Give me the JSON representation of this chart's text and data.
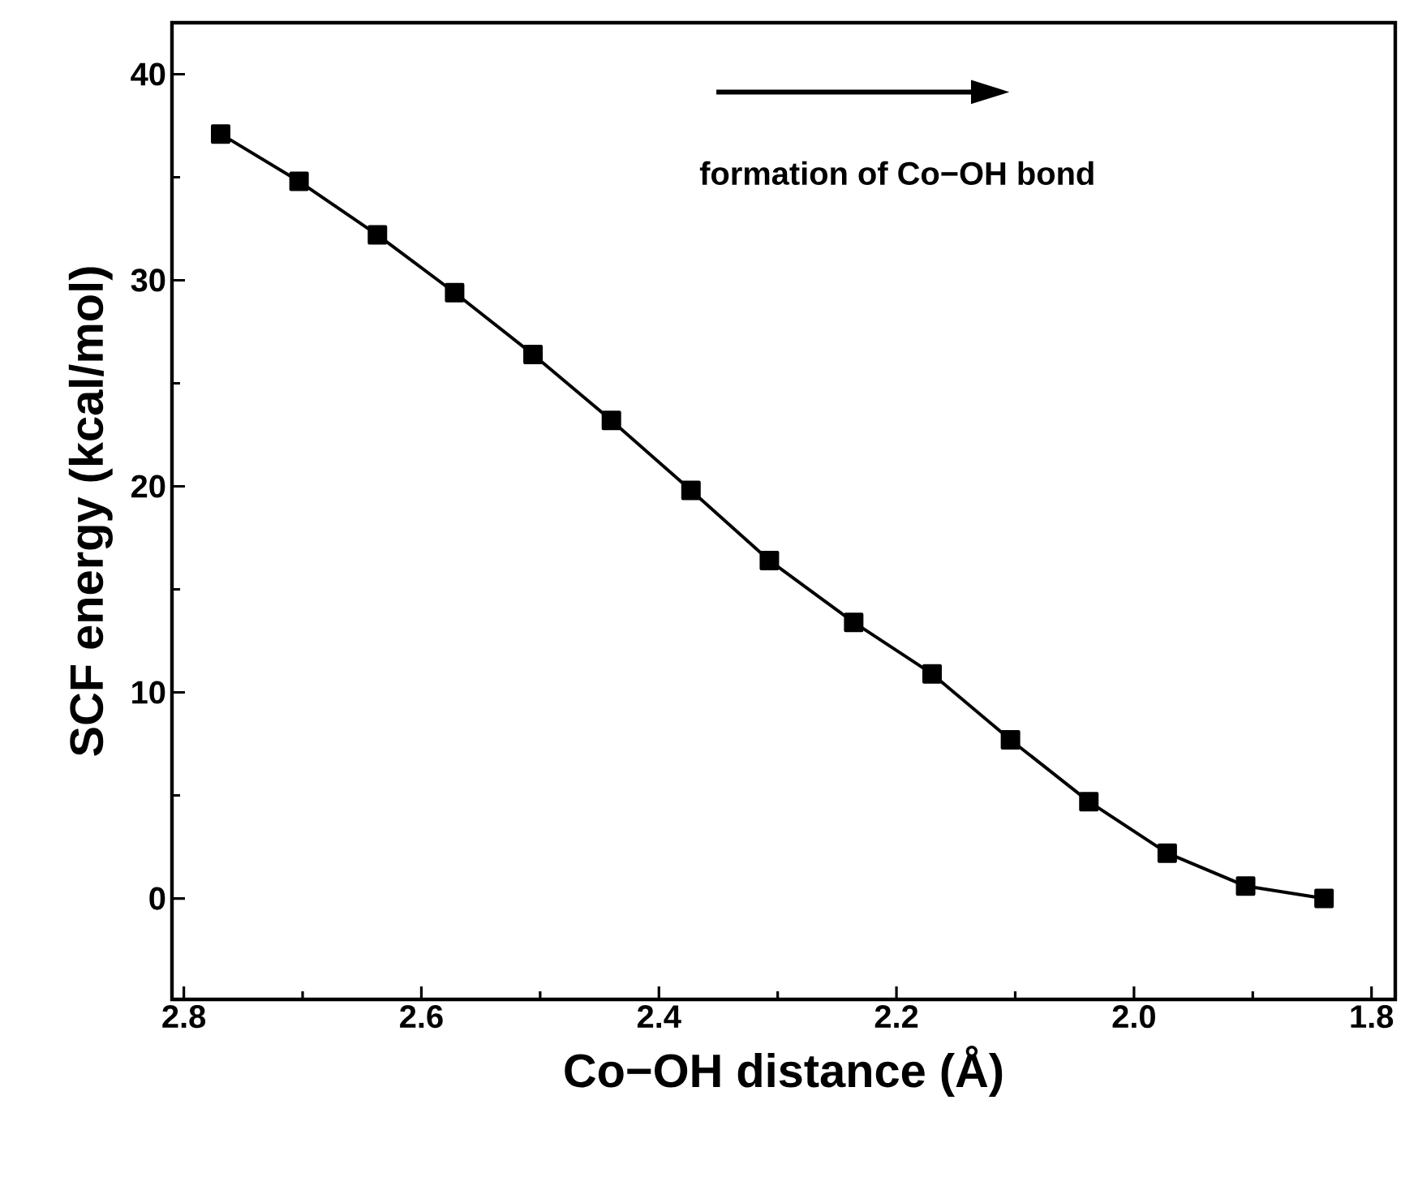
{
  "chart_data": {
    "type": "line",
    "xlabel": "Co−OH distance (Å)",
    "ylabel": "SCF energy (kcal/mol)",
    "annotations": [
      "formation of Co−OH bond"
    ],
    "x": [
      2.769,
      2.703,
      2.637,
      2.572,
      2.506,
      2.44,
      2.373,
      2.307,
      2.236,
      2.17,
      2.104,
      2.038,
      1.972,
      1.906,
      1.84
    ],
    "series": [
      {
        "color": "#000000",
        "values": [
          37.1,
          34.8,
          32.2,
          29.4,
          26.4,
          23.2,
          19.8,
          16.4,
          13.4,
          10.9,
          7.7,
          4.7,
          2.2,
          0.6,
          0.0
        ]
      }
    ],
    "xlim": [
      2.81,
      1.78
    ],
    "ylim": [
      -4.9,
      42.5
    ],
    "xticks": [
      2.8,
      2.6,
      2.4,
      2.2,
      {
        "value": 2.0,
        "label": "2.0"
      },
      1.8
    ],
    "yticks": [
      0,
      10,
      20,
      30,
      40
    ],
    "marker": "square",
    "line_style": "solid",
    "grid": false
  }
}
